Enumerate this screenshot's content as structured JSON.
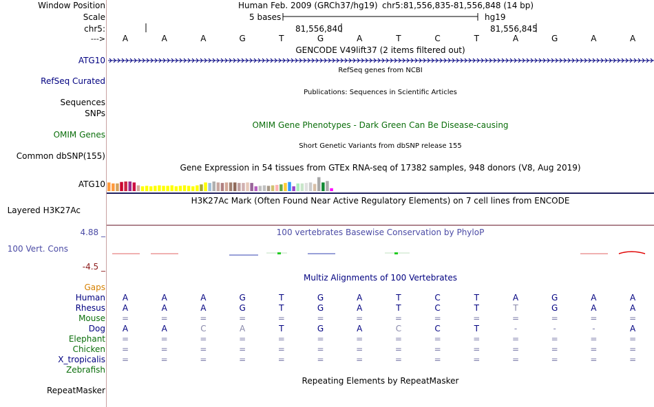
{
  "labels": {
    "window_position": "Window Position",
    "scale": "Scale",
    "chrom": "chr5:",
    "strand": "--->",
    "atg10": "ATG10",
    "refseq": "RefSeq Curated",
    "sequences": "Sequences",
    "snps": "SNPs",
    "omim": "OMIM Genes",
    "dbsnp": "Common dbSNP(155)",
    "gtex": "ATG10",
    "h3k27ac": "Layered H3K27Ac",
    "phylop_max": "4.88 _",
    "vert_cons": "100 Vert. Cons",
    "phylop_min": "-4.5 _",
    "gaps": "Gaps",
    "species": [
      "Human",
      "Rhesus",
      "Mouse",
      "Dog",
      "Elephant",
      "Chicken",
      "X_tropicalis",
      "Zebrafish"
    ],
    "repeatmasker": "RepeatMasker"
  },
  "header": {
    "assembly": "Human Feb. 2009 (GRCh37/hg19)",
    "position": "chr5:81,556,835-81,556,848 (14 bp)",
    "scale_text": "5 bases",
    "scale_db": "hg19",
    "coord1": "81,556,840",
    "coord2": "81,556,845"
  },
  "bases": [
    "A",
    "A",
    "A",
    "G",
    "T",
    "G",
    "A",
    "T",
    "C",
    "T",
    "A",
    "G",
    "A",
    "A"
  ],
  "titles": {
    "gencode": "GENCODE V49lift37 (2 items filtered out)",
    "refseq": "RefSeq genes from NCBI",
    "publications": "Publications: Sequences in Scientific Articles",
    "omim": "OMIM Gene Phenotypes - Dark Green Can Be Disease-causing",
    "dbsnp": "Short Genetic Variants from dbSNP release 155",
    "gtex": "Gene Expression in 54 tissues from GTEx RNA-seq of 17382 samples, 948 donors (V8, Aug 2019)",
    "h3k27ac": "H3K27Ac Mark (Often Found Near Active Regulatory Elements) on 7 cell lines from ENCODE",
    "phylop": "100 vertebrates Basewise Conservation by PhyloP",
    "multiz": "Multiz Alignments of 100 Vertebrates",
    "repeatmasker": "Repeating Elements by RepeatMasker"
  },
  "alignment": {
    "Human": [
      "A",
      "A",
      "A",
      "G",
      "T",
      "G",
      "A",
      "T",
      "C",
      "T",
      "A",
      "G",
      "A",
      "A"
    ],
    "Rhesus": [
      "A",
      "A",
      "A",
      "G",
      "T",
      "G",
      "A",
      "T",
      "C",
      "T",
      "T",
      "G",
      "A",
      "A"
    ],
    "Mouse": [
      "=",
      "=",
      "=",
      "=",
      "=",
      "=",
      "=",
      "=",
      "=",
      "=",
      "=",
      "=",
      "=",
      "="
    ],
    "Dog": [
      "A",
      "A",
      "C",
      "A",
      "T",
      "G",
      "A",
      "C",
      "C",
      "T",
      "-",
      "-",
      "-",
      "A"
    ],
    "Elephant": [
      "=",
      "=",
      "=",
      "=",
      "=",
      "=",
      "=",
      "=",
      "=",
      "=",
      "=",
      "=",
      "=",
      "="
    ],
    "Chicken": [
      "=",
      "=",
      "=",
      "=",
      "=",
      "=",
      "=",
      "=",
      "=",
      "=",
      "=",
      "=",
      "=",
      "="
    ],
    "X_tropicalis": [
      "=",
      "=",
      "=",
      "=",
      "=",
      "=",
      "=",
      "=",
      "=",
      "=",
      "=",
      "=",
      "=",
      "="
    ]
  },
  "gtex_levels": [
    0.9,
    0.8,
    0.8,
    0.95,
    1.0,
    1.0,
    0.9,
    0.6,
    0.5,
    0.55,
    0.5,
    0.55,
    0.6,
    0.55,
    0.55,
    0.6,
    0.5,
    0.55,
    0.6,
    0.55,
    0.5,
    0.6,
    0.7,
    0.9,
    0.85,
    1.0,
    0.9,
    0.85,
    0.9,
    0.9,
    0.9,
    0.85,
    0.85,
    0.9,
    0.85,
    0.5,
    0.55,
    0.6,
    0.55,
    0.6,
    0.65,
    0.7,
    0.85,
    0.95,
    0.5,
    0.8,
    0.8,
    0.85,
    0.9,
    0.75,
    1.45,
    0.9,
    1.05,
    0.3
  ],
  "gtex_colors": [
    "#ff9a3c",
    "#ff9a3c",
    "#d4a15a",
    "#c9002e",
    "#cc2244",
    "#9c2a8a",
    "#cc1144",
    "#d3a898",
    "#ffff00",
    "#ffff00",
    "#ffff00",
    "#ffff00",
    "#ffff00",
    "#ffff00",
    "#ffff00",
    "#ffff00",
    "#ffff00",
    "#ffff00",
    "#ffff00",
    "#ffff00",
    "#ffff00",
    "#ffff00",
    "#aaaa33",
    "#ffff00",
    "#9fbfd8",
    "#b0b0b0",
    "#c7a7a0",
    "#b08080",
    "#d3a898",
    "#a08070",
    "#8f6a5a",
    "#c0a0a0",
    "#d0b0b0",
    "#e6c8b8",
    "#996699",
    "#b860c0",
    "#c0c0c0",
    "#c0c0c0",
    "#a89a88",
    "#d0c070",
    "#ffb3b3",
    "#66aa44",
    "#ffcc33",
    "#3399ff",
    "#9944cc",
    "#aaeebb",
    "#c8e6c9",
    "#e0e0e0",
    "#cccccc",
    "#d8c0a8",
    "#aaaaaa",
    "#118833",
    "#aaaaaa",
    "#ff00ff"
  ],
  "h3k27ac_color": "#6b1f2f",
  "ruler_color": "#000000"
}
